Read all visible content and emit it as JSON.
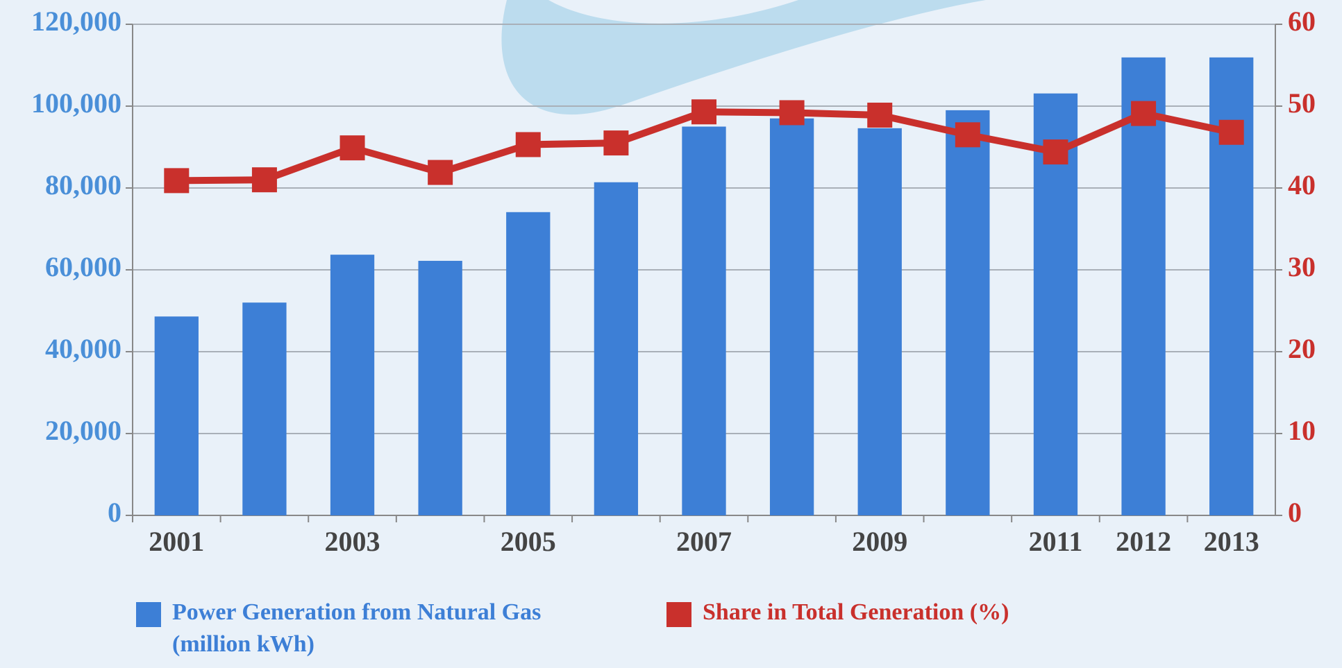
{
  "chart_data": {
    "type": "bar-line",
    "categories": [
      "2001",
      null,
      "2003",
      null,
      "2005",
      null,
      "2007",
      null,
      "2009",
      null,
      "2011",
      "2012",
      "2013"
    ],
    "series": [
      {
        "name": "Power Generation from Natural Gas (million kWh)",
        "color": "#3d7fd6",
        "type": "bar",
        "values": [
          48600,
          52000,
          63700,
          62200,
          74100,
          81400,
          95000,
          97000,
          94600,
          99000,
          103100,
          111900,
          111900
        ]
      },
      {
        "name": "Share in Total Generation (%)",
        "color": "#c9302c",
        "type": "line",
        "axis": "y2",
        "values": [
          40.9,
          41.0,
          44.9,
          41.9,
          45.3,
          45.5,
          49.3,
          49.2,
          48.9,
          46.5,
          44.4,
          49.1,
          46.8
        ]
      }
    ],
    "ylim": [
      0,
      120000
    ],
    "yticks": [
      0,
      {
        "value": 20000,
        "label": "20,000"
      },
      {
        "value": 40000,
        "label": "40,000"
      },
      {
        "value": 60000,
        "label": "60,000"
      },
      {
        "value": 80000,
        "label": "80,000"
      },
      {
        "value": 100000,
        "label": "100,000"
      },
      {
        "value": 120000,
        "label": "120,000"
      }
    ],
    "y2lim": [
      0,
      60
    ],
    "y2ticks": [
      0,
      10,
      20,
      30,
      40,
      50,
      60
    ],
    "grid": true
  }
}
